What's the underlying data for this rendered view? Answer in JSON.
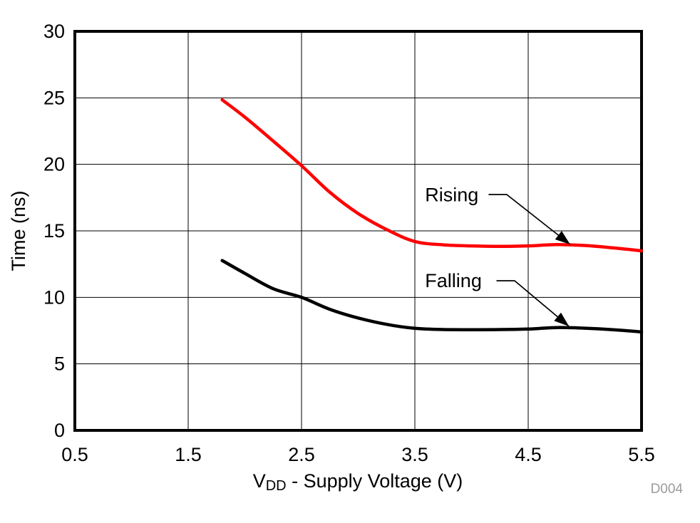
{
  "figure": {
    "id_label": "D004",
    "watermark_color": "#9B9B9B",
    "background": "#FFFFFF"
  },
  "chart_data": {
    "type": "line",
    "title": "",
    "xlabel": {
      "prefix": "V",
      "subscript": "DD",
      "suffix": " - Supply Voltage (V)"
    },
    "ylabel": "Time (ns)",
    "xlim": [
      0.5,
      5.5
    ],
    "ylim": [
      0,
      30
    ],
    "grid": true,
    "grid_color": "#000000",
    "frame_color": "#000000",
    "legend_position": "none",
    "xticks": {
      "values": [
        0.5,
        1.5,
        2.5,
        3.5,
        4.5,
        5.5
      ],
      "labels": [
        "0.5",
        "1.5",
        "2.5",
        "3.5",
        "4.5",
        "5.5"
      ]
    },
    "yticks": {
      "values": [
        0,
        5,
        10,
        15,
        20,
        25,
        30
      ],
      "labels": [
        "0",
        "5",
        "10",
        "15",
        "20",
        "25",
        "30"
      ]
    },
    "x": [
      1.8,
      2.0,
      2.25,
      2.5,
      2.75,
      3.0,
      3.25,
      3.5,
      3.75,
      4.0,
      4.25,
      4.5,
      4.75,
      5.0,
      5.25,
      5.5
    ],
    "series": [
      {
        "name": "Rising",
        "color": "#FF0000",
        "values": [
          24.85,
          23.55,
          21.75,
          19.9,
          17.9,
          16.3,
          15.1,
          14.2,
          13.95,
          13.87,
          13.83,
          13.87,
          13.97,
          13.9,
          13.72,
          13.5
        ]
      },
      {
        "name": "Falling",
        "color": "#000000",
        "values": [
          12.77,
          11.8,
          10.65,
          10.0,
          9.1,
          8.45,
          7.97,
          7.67,
          7.58,
          7.57,
          7.58,
          7.62,
          7.73,
          7.68,
          7.57,
          7.4
        ]
      }
    ],
    "annotations": [
      {
        "label": "Rising",
        "label_x": 3.59,
        "label_y": 17.7,
        "leader": [
          [
            4.15,
            17.73
          ],
          [
            4.31,
            17.73
          ],
          [
            4.87,
            13.98
          ]
        ]
      },
      {
        "label": "Falling",
        "label_x": 3.59,
        "label_y": 11.25,
        "leader": [
          [
            4.22,
            11.25
          ],
          [
            4.38,
            11.25
          ],
          [
            4.86,
            7.82
          ]
        ]
      }
    ]
  }
}
